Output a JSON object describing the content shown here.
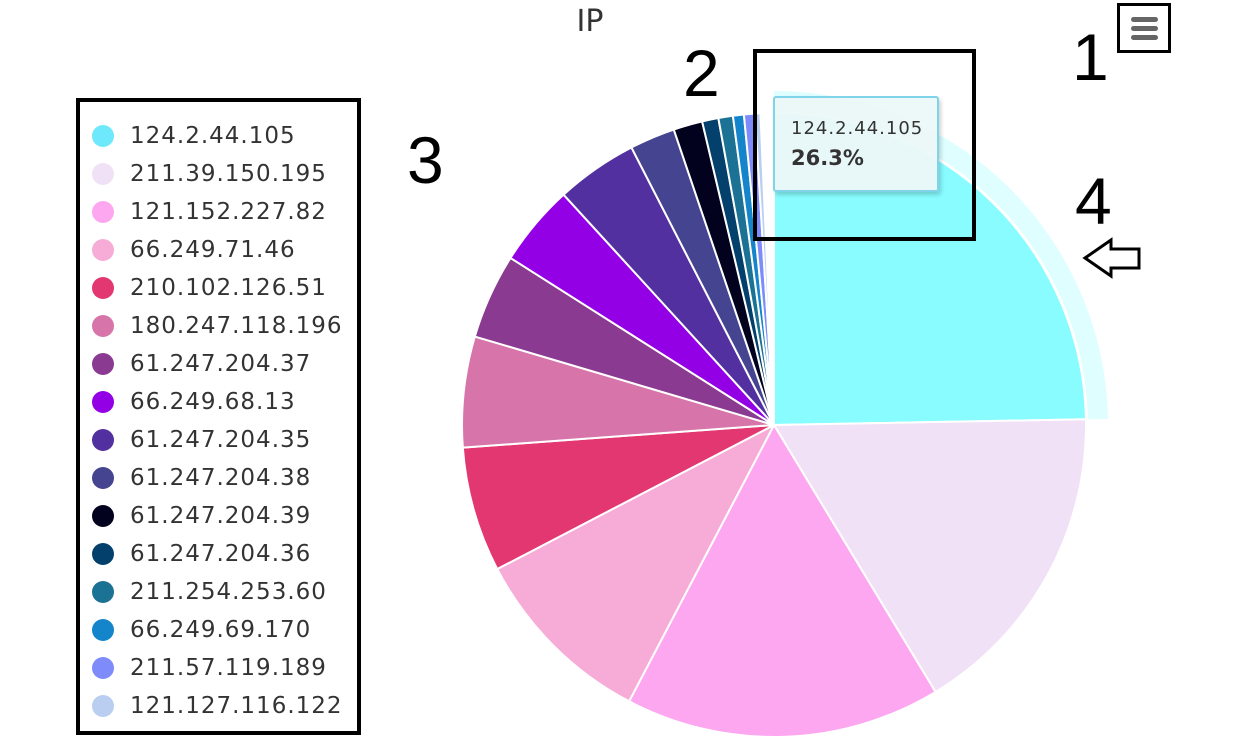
{
  "chart_data": {
    "type": "pie",
    "title": "IP",
    "legend_position": "left",
    "categories": [
      "124.2.44.105",
      "211.39.150.195",
      "121.152.227.82",
      "66.249.71.46",
      "210.102.126.51",
      "180.247.118.196",
      "61.247.204.37",
      "66.249.68.13",
      "61.247.204.35",
      "61.247.204.38",
      "61.247.204.39",
      "61.247.204.36",
      "211.254.253.60",
      "66.249.69.170",
      "211.57.119.189",
      "121.127.116.122"
    ],
    "values": [
      26.3,
      17.7,
      17.4,
      10.3,
      6.9,
      6.1,
      4.7,
      4.5,
      4.5,
      2.5,
      1.6,
      0.9,
      0.8,
      0.6,
      0.6,
      0.3
    ],
    "colors": [
      "#88fcff",
      "#f1e1f7",
      "#fda7f1",
      "#f7acd8",
      "#e33771",
      "#d775ab",
      "#8a3a90",
      "#9300e6",
      "#5230a0",
      "#454490",
      "#02021e",
      "#03416c",
      "#1b7294",
      "#1585cb",
      "#7e8cfb",
      "#b9cef0"
    ],
    "legend_dot_colors": [
      "#6ee8fb",
      "#f1e1f7",
      "#fda7f1",
      "#f7acd8",
      "#e33771",
      "#d775ab",
      "#8a3a90",
      "#9300e6",
      "#5230a0",
      "#454490",
      "#02021e",
      "#03416c",
      "#1b7294",
      "#1585cb",
      "#7e8cfb",
      "#b9cef0"
    ],
    "hovered_index": 0,
    "tooltip": {
      "name": "124.2.44.105",
      "value": "26.3%"
    }
  },
  "annotations": {
    "n1": "1",
    "n2": "2",
    "n3": "3",
    "n4": "4"
  },
  "icons": {
    "menu": "hamburger-menu-icon",
    "pointer": "left-arrow-outline-icon"
  }
}
